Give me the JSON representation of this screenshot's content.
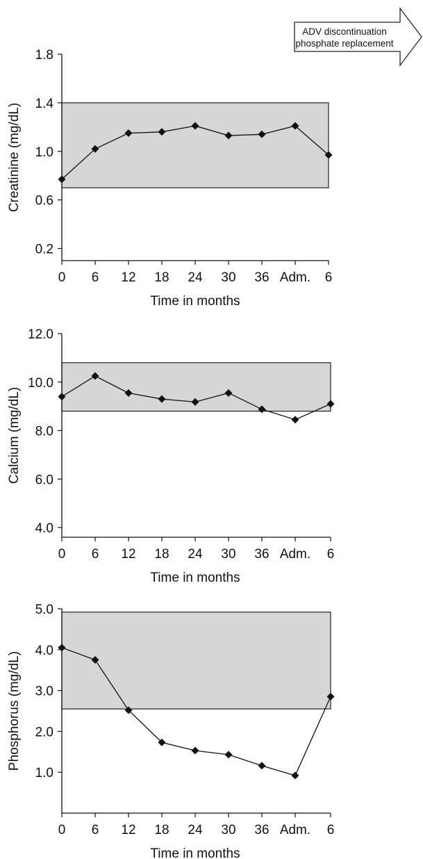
{
  "annotation": {
    "line1": "ADV discontinuation",
    "line2": "phosphate replacement"
  },
  "chart_data": [
    {
      "type": "line",
      "categories": [
        "0",
        "6",
        "12",
        "18",
        "24",
        "30",
        "36",
        "Adm.",
        "6"
      ],
      "values": [
        0.77,
        1.02,
        1.15,
        1.16,
        1.21,
        1.13,
        1.14,
        1.21,
        0.97
      ],
      "reference_range": [
        0.7,
        1.4
      ],
      "yticks": [
        "0.2",
        "0.6",
        "1.0",
        "1.4",
        "1.8"
      ],
      "ylim": [
        0.1,
        1.8
      ],
      "xlabel": "Time in months",
      "ylabel": "Creatinine (mg/dL)",
      "shade_color": "#d6d6d6",
      "grid": false
    },
    {
      "type": "line",
      "categories": [
        "0",
        "6",
        "12",
        "18",
        "24",
        "30",
        "36",
        "Adm.",
        "6"
      ],
      "values": [
        9.4,
        10.25,
        9.55,
        9.3,
        9.18,
        9.55,
        8.88,
        8.45,
        9.1
      ],
      "reference_range": [
        8.8,
        10.8
      ],
      "yticks": [
        "4.0",
        "6.0",
        "8.0",
        "10.0",
        "12.0"
      ],
      "ylim": [
        3.6,
        12.0
      ],
      "xlabel": "Time in months",
      "ylabel": "Calcium (mg/dL)",
      "shade_color": "#d6d6d6",
      "grid": false
    },
    {
      "type": "line",
      "categories": [
        "0",
        "6",
        "12",
        "18",
        "24",
        "30",
        "36",
        "Adm.",
        "6"
      ],
      "values": [
        4.05,
        3.75,
        2.52,
        1.73,
        1.53,
        1.43,
        1.16,
        0.92,
        2.85
      ],
      "reference_range": [
        2.55,
        4.92
      ],
      "yticks": [
        "1.0",
        "2.0",
        "3.0",
        "4.0",
        "5.0"
      ],
      "ylim": [
        0.0,
        5.0
      ],
      "xlabel": "Time in months",
      "ylabel": "Phosphorus (mg/dL)",
      "shade_color": "#d6d6d6",
      "grid": false
    }
  ]
}
